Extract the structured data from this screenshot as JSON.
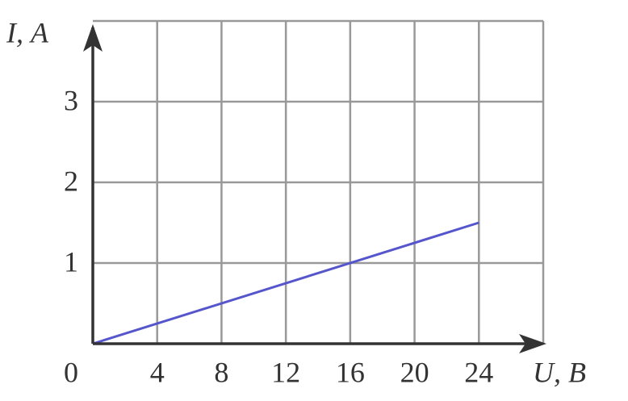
{
  "chart_data": {
    "type": "line",
    "x_label": "U, В",
    "y_label": "I, А",
    "x": [
      0,
      24
    ],
    "series": [
      {
        "values": [
          0,
          1.5
        ],
        "color": "#5555cc"
      }
    ],
    "xlim": [
      0,
      28
    ],
    "ylim": [
      0,
      4
    ],
    "xticks": [
      0,
      4,
      8,
      12,
      16,
      20,
      24
    ],
    "yticks": [
      1,
      2,
      3
    ],
    "grid": true
  }
}
